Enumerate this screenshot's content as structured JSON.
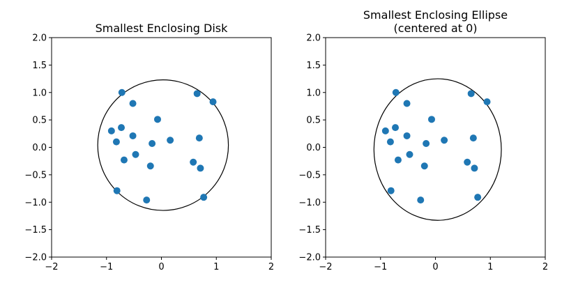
{
  "chart_data": [
    {
      "type": "scatter",
      "title": "Smallest Enclosing Disk",
      "xlim": [
        -2,
        2
      ],
      "ylim": [
        -2,
        2
      ],
      "xticks": [
        -2,
        -1,
        0,
        1,
        2
      ],
      "yticks": [
        -2.0,
        -1.5,
        -1.0,
        -0.5,
        0.0,
        0.5,
        1.0,
        1.5,
        2.0
      ],
      "xtick_labels": [
        "−2",
        "−1",
        "0",
        "1",
        "2"
      ],
      "ytick_labels": [
        "−2.0",
        "−1.5",
        "−1.0",
        "−0.5",
        "0.0",
        "0.5",
        "1.0",
        "1.5",
        "2.0"
      ],
      "grid": false,
      "point_color": "#1f77b4",
      "points": [
        {
          "x": -0.72,
          "y": 1.0
        },
        {
          "x": -0.52,
          "y": 0.8
        },
        {
          "x": 0.65,
          "y": 0.98
        },
        {
          "x": 0.94,
          "y": 0.83
        },
        {
          "x": -0.07,
          "y": 0.51
        },
        {
          "x": -0.91,
          "y": 0.3
        },
        {
          "x": -0.73,
          "y": 0.36
        },
        {
          "x": -0.52,
          "y": 0.21
        },
        {
          "x": -0.82,
          "y": 0.1
        },
        {
          "x": -0.17,
          "y": 0.07
        },
        {
          "x": 0.16,
          "y": 0.13
        },
        {
          "x": 0.69,
          "y": 0.17
        },
        {
          "x": -0.47,
          "y": -0.13
        },
        {
          "x": -0.68,
          "y": -0.23
        },
        {
          "x": -0.2,
          "y": -0.34
        },
        {
          "x": 0.58,
          "y": -0.27
        },
        {
          "x": 0.71,
          "y": -0.38
        },
        {
          "x": -0.81,
          "y": -0.79
        },
        {
          "x": 0.77,
          "y": -0.91
        },
        {
          "x": -0.27,
          "y": -0.96
        }
      ],
      "shape": {
        "type": "circle",
        "center": [
          0.03,
          0.04
        ],
        "radius": 1.19,
        "color": "#000000"
      }
    },
    {
      "type": "scatter",
      "title": "Smallest Enclosing Ellipse\n(centered at 0)",
      "xlim": [
        -2,
        2
      ],
      "ylim": [
        -2,
        2
      ],
      "xticks": [
        -2,
        -1,
        0,
        1,
        2
      ],
      "yticks": [
        -2.0,
        -1.5,
        -1.0,
        -0.5,
        0.0,
        0.5,
        1.0,
        1.5,
        2.0
      ],
      "xtick_labels": [
        "−2",
        "−1",
        "0",
        "1",
        "2"
      ],
      "ytick_labels": [
        "−2.0",
        "−1.5",
        "−1.0",
        "−0.5",
        "0.0",
        "0.5",
        "1.0",
        "1.5",
        "2.0"
      ],
      "grid": false,
      "point_color": "#1f77b4",
      "points": [
        {
          "x": -0.72,
          "y": 1.0
        },
        {
          "x": -0.52,
          "y": 0.8
        },
        {
          "x": 0.65,
          "y": 0.98
        },
        {
          "x": 0.94,
          "y": 0.83
        },
        {
          "x": -0.07,
          "y": 0.51
        },
        {
          "x": -0.91,
          "y": 0.3
        },
        {
          "x": -0.73,
          "y": 0.36
        },
        {
          "x": -0.52,
          "y": 0.21
        },
        {
          "x": -0.82,
          "y": 0.1
        },
        {
          "x": -0.17,
          "y": 0.07
        },
        {
          "x": 0.16,
          "y": 0.13
        },
        {
          "x": 0.69,
          "y": 0.17
        },
        {
          "x": -0.47,
          "y": -0.13
        },
        {
          "x": -0.68,
          "y": -0.23
        },
        {
          "x": -0.2,
          "y": -0.34
        },
        {
          "x": 0.58,
          "y": -0.27
        },
        {
          "x": 0.71,
          "y": -0.38
        },
        {
          "x": -0.81,
          "y": -0.79
        },
        {
          "x": 0.77,
          "y": -0.91
        },
        {
          "x": -0.27,
          "y": -0.96
        }
      ],
      "shape": {
        "type": "ellipse",
        "center": [
          0.04,
          -0.04
        ],
        "rx": 1.16,
        "ry": 1.29,
        "color": "#000000"
      }
    }
  ]
}
